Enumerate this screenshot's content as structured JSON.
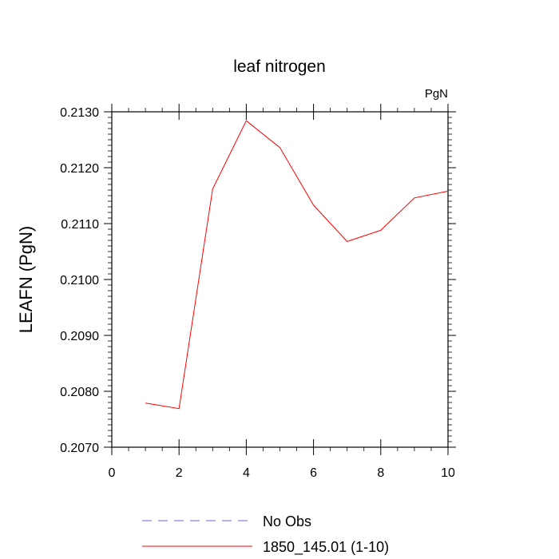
{
  "chart_data": {
    "type": "line",
    "title": "leaf nitrogen",
    "units_label": "PgN",
    "xlabel": "",
    "ylabel": "LEAFN  (PgN)",
    "xlim": [
      0,
      10
    ],
    "ylim": [
      0.207,
      0.213
    ],
    "x_ticks": [
      0,
      2,
      4,
      6,
      8,
      10
    ],
    "x_tick_labels": [
      "0",
      "2",
      "4",
      "6",
      "8",
      "10"
    ],
    "y_ticks": [
      0.207,
      0.208,
      0.209,
      0.21,
      0.211,
      0.212,
      0.213
    ],
    "y_tick_labels": [
      "0.2070",
      "0.2080",
      "0.2090",
      "0.2100",
      "0.2110",
      "0.2120",
      "0.2130"
    ],
    "grid": false,
    "legend_position": "bottom",
    "series": [
      {
        "name": "1850_145.01 (1-10)",
        "color": "#ff0000",
        "style": "solid",
        "x": [
          1,
          2,
          3,
          4,
          5,
          6,
          7,
          8,
          9,
          10
        ],
        "y": [
          0.20779,
          0.20769,
          0.21162,
          0.21284,
          0.21236,
          0.21133,
          0.21068,
          0.21088,
          0.21146,
          0.21158
        ]
      }
    ],
    "legend": [
      {
        "label": "No Obs",
        "color": "#6666ff",
        "style": "dashed"
      },
      {
        "label": "1850_145.01 (1-10)",
        "color": "#ff0000",
        "style": "solid"
      }
    ]
  }
}
